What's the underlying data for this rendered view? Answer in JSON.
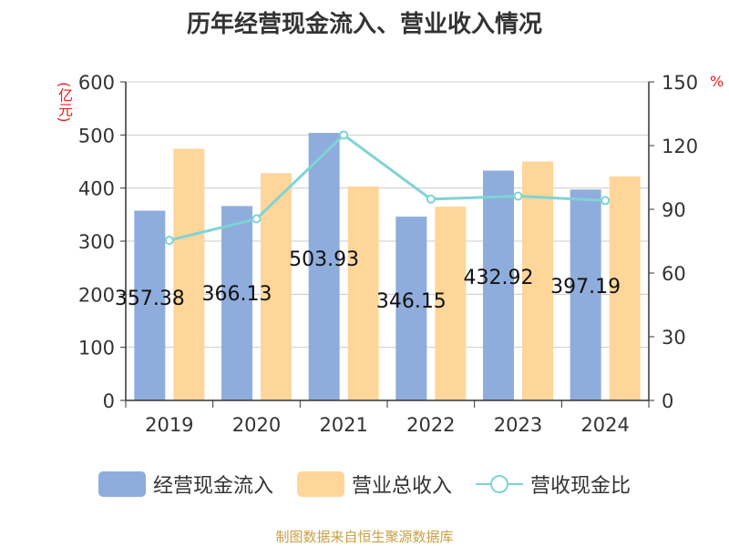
{
  "chart_data": {
    "type": "bar+line",
    "title": "历年经营现金流入、营业收入情况",
    "categories": [
      "2019",
      "2020",
      "2021",
      "2022",
      "2023",
      "2024"
    ],
    "series": [
      {
        "name": "经营现金流入",
        "type": "bar",
        "axis": "left",
        "values": [
          357.38,
          366.13,
          503.93,
          346.15,
          432.92,
          397.19
        ],
        "labels": [
          "357.38",
          "366.13",
          "503.93",
          "346.15",
          "432.92",
          "397.19"
        ],
        "color": "#8eaddc"
      },
      {
        "name": "营业总收入",
        "type": "bar",
        "axis": "left",
        "values": [
          474,
          428,
          403,
          365,
          450,
          422
        ],
        "color": "#ffd699"
      },
      {
        "name": "营收现金比",
        "type": "line",
        "axis": "right",
        "values": [
          75.4,
          85.5,
          125.0,
          94.8,
          96.2,
          94.1
        ],
        "color": "#7fd3d6"
      }
    ],
    "left_axis": {
      "unit": "(亿元)",
      "ylim": [
        0,
        600
      ],
      "ticks": [
        0,
        100,
        200,
        300,
        400,
        500,
        600
      ]
    },
    "right_axis": {
      "unit": "%",
      "ylim": [
        0,
        150
      ],
      "ticks": [
        0,
        30,
        60,
        90,
        120,
        150
      ]
    },
    "grid": true,
    "legend_position": "bottom",
    "source": "制图数据来自恒生聚源数据库"
  }
}
